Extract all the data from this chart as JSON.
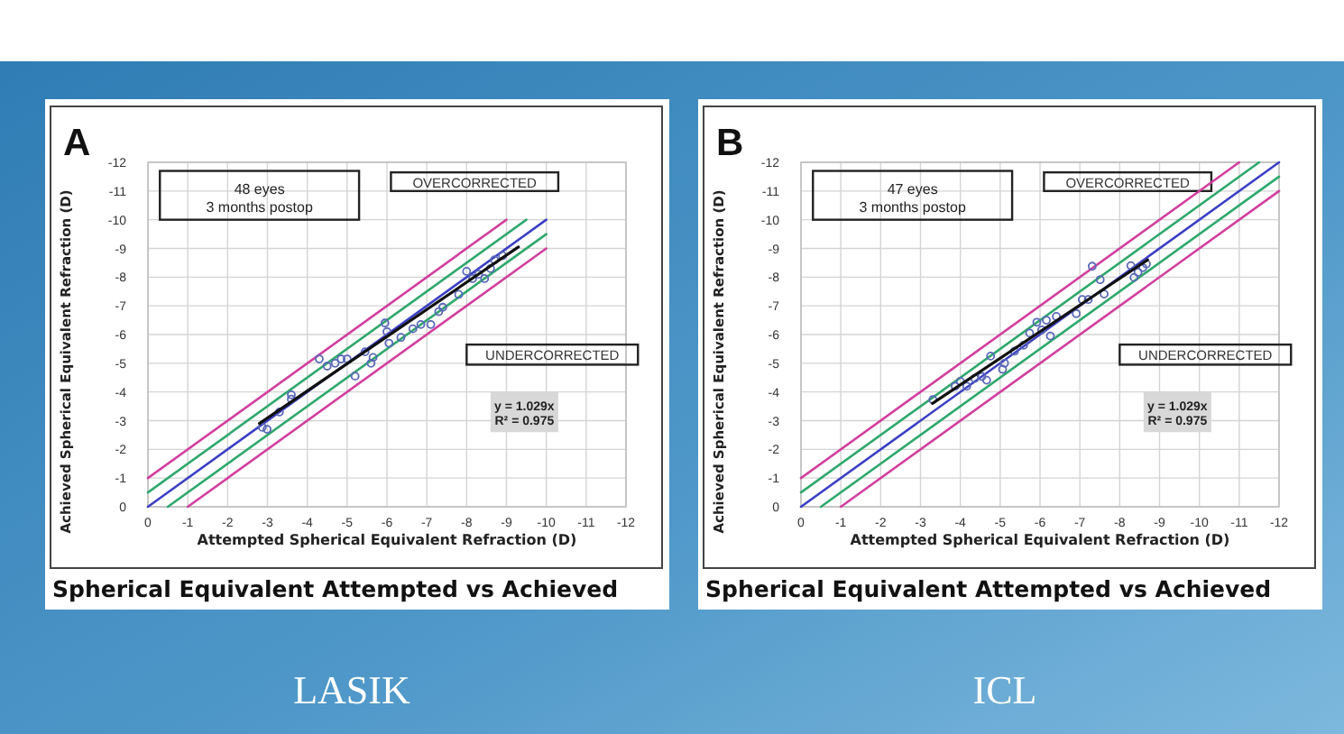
{
  "chart_data": [
    {
      "type": "scatter",
      "title": "Spherical Equivalent Attempted vs Achieved",
      "xlabel": "Attempted Spherical Equivalent Refraction (D)",
      "ylabel": "Achieved Spherical Equivalent Refraction (D)",
      "xlim": [
        0,
        -12
      ],
      "ylim": [
        0,
        -12
      ],
      "xticks": [
        0,
        -1,
        -2,
        -3,
        -4,
        -5,
        -6,
        -7,
        -8,
        -9,
        -10,
        -11,
        -12
      ],
      "yticks": [
        0,
        -1,
        -2,
        -3,
        -4,
        -5,
        -6,
        -7,
        -8,
        -9,
        -10,
        -11,
        -12
      ],
      "grid": true,
      "line_style": "solid",
      "annotations": [
        "A",
        "48 eyes",
        "3 months postop",
        "OVERCORRECTED",
        "UNDERCORRECTED",
        "y = 1.029x",
        "R² = 0.975",
        "LASIK"
      ],
      "series": [
        {
          "type": "line",
          "color": "#d13f9e",
          "x": [
            0,
            -9
          ],
          "values": [
            -1,
            -10
          ]
        },
        {
          "type": "line",
          "color": "#2fa86c",
          "x": [
            0,
            -9.5
          ],
          "values": [
            -0.5,
            -10
          ]
        },
        {
          "type": "line",
          "color": "#3b3fc4",
          "x": [
            0,
            -10
          ],
          "values": [
            0,
            -10
          ]
        },
        {
          "type": "line",
          "color": "#2fa86c",
          "x": [
            -0.5,
            -10
          ],
          "values": [
            0,
            -9.5
          ]
        },
        {
          "type": "line",
          "color": "#d13f9e",
          "x": [
            -1,
            -10
          ],
          "values": [
            0,
            -9
          ]
        },
        {
          "type": "scatter",
          "marker": "circle",
          "color": "#5a68b8",
          "x": [
            -2.87,
            -2.99,
            -3.3,
            -3.6,
            -3.6,
            -4.3,
            -4.5,
            -4.7,
            -4.85,
            -5.0,
            -5.2,
            -5.45,
            -5.6,
            -5.65,
            -5.95,
            -6.0,
            -6.05,
            -6.35,
            -6.65,
            -6.85,
            -7.1,
            -7.3,
            -7.4,
            -7.8,
            -8.0,
            -8.15,
            -8.3,
            -8.45,
            -8.6,
            -8.7,
            -8.9
          ],
          "values": [
            -2.77,
            -2.7,
            -3.3,
            -3.9,
            -3.75,
            -5.15,
            -4.9,
            -5.0,
            -5.15,
            -5.15,
            -4.55,
            -5.4,
            -5.0,
            -5.2,
            -6.4,
            -6.1,
            -5.7,
            -5.9,
            -6.2,
            -6.35,
            -6.35,
            -6.8,
            -6.95,
            -7.4,
            -8.2,
            -7.95,
            -8.1,
            -7.95,
            -8.3,
            -8.6,
            -8.75
          ]
        },
        {
          "type": "line",
          "color": "#111111",
          "x": [
            -2.8,
            -9.3
          ],
          "values": [
            -2.9,
            -9.05
          ]
        }
      ]
    },
    {
      "type": "scatter",
      "title": "Spherical Equivalent Attempted vs Achieved",
      "xlabel": "Attempted Spherical Equivalent Refraction (D)",
      "ylabel": "Achieved Spherical Equivalent Refraction (D)",
      "xlim": [
        0,
        -12
      ],
      "ylim": [
        0,
        -12
      ],
      "xticks": [
        0,
        -1,
        -2,
        -3,
        -4,
        -5,
        -6,
        -7,
        -8,
        -9,
        -10,
        -11,
        -12
      ],
      "yticks": [
        0,
        -1,
        -2,
        -3,
        -4,
        -5,
        -6,
        -7,
        -8,
        -9,
        -10,
        -11,
        -12
      ],
      "grid": true,
      "line_style": "solid",
      "annotations": [
        "B",
        "47 eyes",
        "3 months postop",
        "OVERCORRECTED",
        "UNDERCORRECTED",
        "y = 1.029x",
        "R² = 0.975",
        "ICL"
      ],
      "series": [
        {
          "type": "line",
          "color": "#d13f9e",
          "x": [
            0,
            -11
          ],
          "values": [
            -1,
            -12
          ]
        },
        {
          "type": "line",
          "color": "#2fa86c",
          "x": [
            0,
            -11.5
          ],
          "values": [
            -0.5,
            -12
          ]
        },
        {
          "type": "line",
          "color": "#3b3fc4",
          "x": [
            0,
            -12
          ],
          "values": [
            0,
            -12
          ]
        },
        {
          "type": "line",
          "color": "#2fa86c",
          "x": [
            -0.5,
            -12
          ],
          "values": [
            0,
            -11.5
          ]
        },
        {
          "type": "line",
          "color": "#d13f9e",
          "x": [
            -1,
            -12
          ],
          "values": [
            0,
            -11
          ]
        },
        {
          "type": "scatter",
          "marker": "circle",
          "color": "#5a68b8",
          "x": [
            -3.31,
            -3.87,
            -4.0,
            -4.16,
            -4.36,
            -4.54,
            -4.66,
            -4.76,
            -5.06,
            -5.11,
            -5.36,
            -5.59,
            -5.74,
            -5.92,
            -6.04,
            -6.16,
            -6.26,
            -6.41,
            -6.91,
            -7.06,
            -7.21,
            -7.31,
            -7.51,
            -7.61,
            -8.28,
            -8.36,
            -8.46,
            -8.58,
            -8.67
          ],
          "values": [
            -3.73,
            -4.2,
            -4.37,
            -4.2,
            -4.47,
            -4.54,
            -4.41,
            -5.25,
            -4.79,
            -5.0,
            -5.42,
            -5.63,
            -6.05,
            -6.43,
            -6.16,
            -6.5,
            -5.95,
            -6.63,
            -6.73,
            -7.22,
            -7.22,
            -8.38,
            -7.91,
            -7.41,
            -8.4,
            -7.99,
            -8.17,
            -8.33,
            -8.46
          ]
        },
        {
          "type": "line",
          "color": "#111111",
          "x": [
            -3.3,
            -8.7
          ],
          "values": [
            -3.6,
            -8.6
          ]
        }
      ]
    }
  ]
}
